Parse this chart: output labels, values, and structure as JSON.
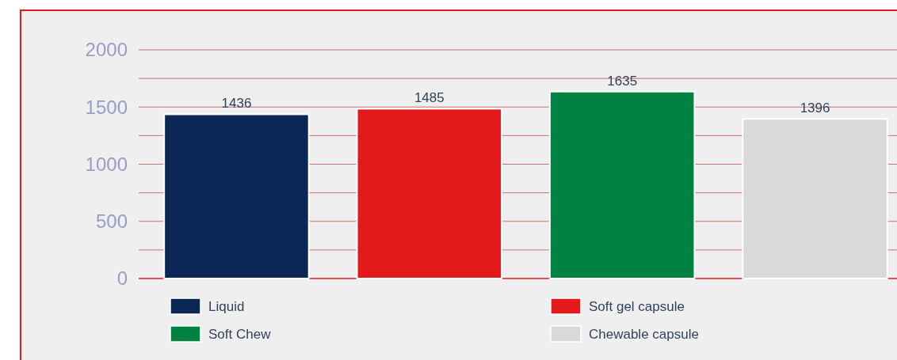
{
  "chart_data": {
    "type": "bar",
    "categories": [
      null
    ],
    "series": [
      {
        "name": "Liquid",
        "color": "#0a2755",
        "values": [
          1436
        ]
      },
      {
        "name": "Soft gel capsule",
        "color": "#e3191c",
        "values": [
          1485
        ]
      },
      {
        "name": "Soft Chew",
        "color": "#008342",
        "values": [
          1635
        ]
      },
      {
        "name": "Chewable capsule",
        "color": "#d9d9d9",
        "values": [
          1396
        ]
      }
    ],
    "ylim": [
      0,
      2000
    ],
    "yticks": [
      0,
      {
        "value": 250,
        "label": null
      },
      500,
      {
        "value": 750,
        "label": null
      },
      1000,
      {
        "value": 1250,
        "label": null
      },
      1500,
      {
        "value": 1750,
        "label": null
      },
      2000
    ],
    "grid": "y",
    "data_labels": true,
    "legend": "bottom"
  }
}
